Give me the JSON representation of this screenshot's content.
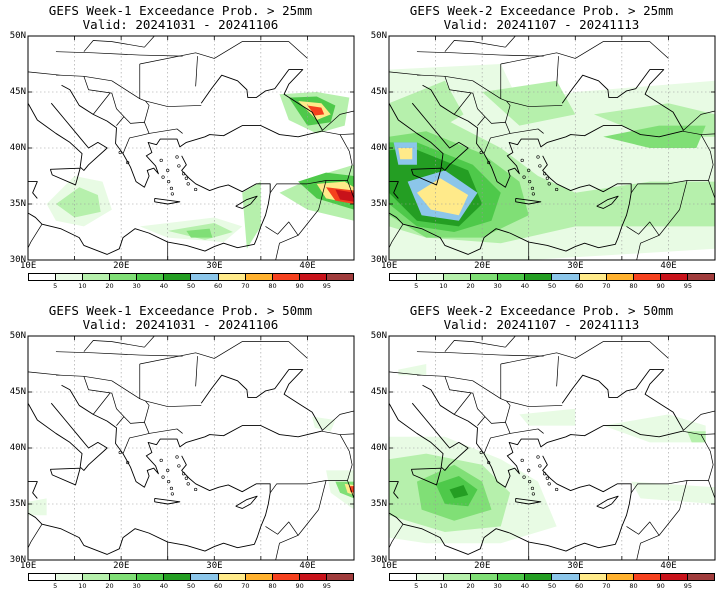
{
  "panels": [
    {
      "title": "GEFS Week-1 Exceedance Prob. > 25mm",
      "valid": "Valid: 20241031 - 20241106"
    },
    {
      "title": "GEFS Week-2 Exceedance Prob. > 25mm",
      "valid": "Valid: 20241107 - 20241113"
    },
    {
      "title": "GEFS Week-1 Exceedance Prob. > 50mm",
      "valid": "Valid: 20241031 - 20241106"
    },
    {
      "title": "GEFS Week-2 Exceedance Prob. > 50mm",
      "valid": "Valid: 20241107 - 20241113"
    }
  ],
  "lat_labels": [
    "50N",
    "45N",
    "40N",
    "35N",
    "30N"
  ],
  "lon_labels": [
    "10E",
    "20E",
    "30E",
    "40E"
  ],
  "colorbar": {
    "labels": [
      "5",
      "10",
      "20",
      "30",
      "40",
      "50",
      "60",
      "70",
      "80",
      "90",
      "95"
    ],
    "colors": [
      "#ffffff",
      "#e8fbe4",
      "#b6f0ac",
      "#80df76",
      "#4ec94a",
      "#249e23",
      "#8cc6ea",
      "#ffea8a",
      "#ffb12e",
      "#f5411e",
      "#c8121a",
      "#a03c3c"
    ]
  }
}
